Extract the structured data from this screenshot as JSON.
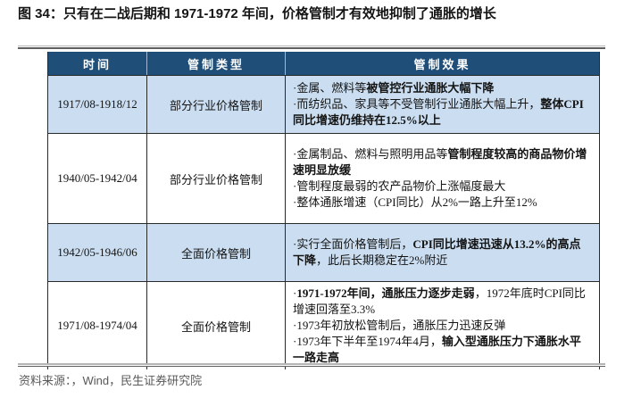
{
  "title": "图 34：只有在二战后期和 1971-1972 年间，价格管制才有效地抑制了通胀的增长",
  "source_note": "资料来源：，Wind，民生证券研究院",
  "bullet": "·",
  "colors": {
    "header_bg": "#1F4E79",
    "header_text": "#FFFFFF",
    "header_divider": "#9FB9D4",
    "row_shaded_bg": "#CBDEF1",
    "row_bg": "#FFFFFF",
    "border": "#2A2A2A",
    "body_text": "#141414",
    "title_text": "#141414",
    "source_text": "#595959",
    "rule_light": "#B5B5B5",
    "rule_dark": "#5F5F5F"
  },
  "table": {
    "headers": [
      "时间",
      "管制类型",
      "管制效果"
    ],
    "rows": [
      {
        "time": "1917/08-1918/12",
        "type": "部分行业价格管制",
        "shaded": true,
        "effects": [
          [
            {
              "t": "金属、燃料等",
              "b": false
            },
            {
              "t": "被管控行业通胀大幅下降",
              "b": true
            }
          ],
          [
            {
              "t": "而纺织品、家具等不受管制行业通胀大幅上升，",
              "b": false
            },
            {
              "t": "整体CPI同比增速仍维持在12.5%以上",
              "b": true
            }
          ]
        ]
      },
      {
        "time": "1940/05-1942/04",
        "type": "部分行业价格管制",
        "shaded": false,
        "effects": [
          [
            {
              "t": "金属制品、燃料与照明用品等",
              "b": false
            },
            {
              "t": "管制程度较高的商品物价增速明显放缓",
              "b": true
            }
          ],
          [
            {
              "t": "管制程度最弱的农产品物价上涨幅度最大",
              "b": false
            }
          ],
          [
            {
              "t": "整体通胀增速（CPI同比）从2%一路上升至12%",
              "b": false
            }
          ]
        ]
      },
      {
        "time": "1942/05-1946/06",
        "type": "全面价格管制",
        "shaded": true,
        "effects": [
          [
            {
              "t": "实行全面价格管制后，",
              "b": false
            },
            {
              "t": "CPI同比增速迅速从13.2%的高点下降",
              "b": true
            },
            {
              "t": "，此后长期稳定在2%附近",
              "b": false
            }
          ]
        ]
      },
      {
        "time": "1971/08-1974/04",
        "type": "全面价格管制",
        "shaded": false,
        "effects": [
          [
            {
              "t": "1971-1972年间，通胀压力逐步走弱",
              "b": true
            },
            {
              "t": "，1972年底时CPI同比增速回落至3.3%",
              "b": false
            }
          ],
          [
            {
              "t": "1973年初放松管制后，通胀压力迅速反弹",
              "b": false
            }
          ],
          [
            {
              "t": "1973年下半年至1974年4月，",
              "b": false
            },
            {
              "t": "输入型通胀压力下通胀水平一路走高",
              "b": true
            }
          ]
        ]
      }
    ]
  }
}
